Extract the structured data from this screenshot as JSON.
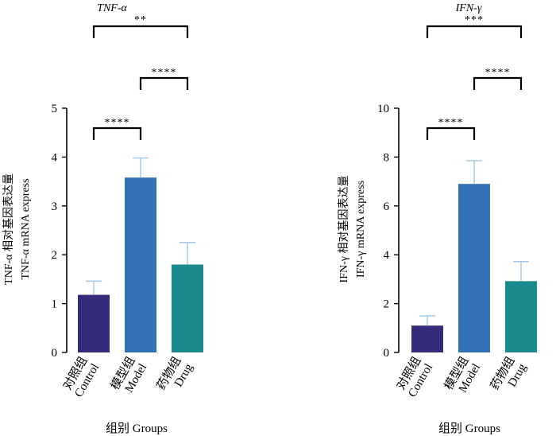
{
  "figure": {
    "xlabel": "组别 Groups",
    "colors": {
      "control": "#342c7a",
      "model": "#3270b8",
      "drug": "#1a8a8e",
      "error_bar": "#a9cbe6",
      "axis": "#000000"
    }
  },
  "chart_data": [
    {
      "type": "bar",
      "title": "TNF-α",
      "ylabel_line1": "TNF-α 相对基因表达量",
      "ylabel_line2": "TNF-α mRNA express",
      "xlabel": "组别 Groups",
      "ylim": [
        0,
        5
      ],
      "yticks": [
        0,
        1,
        2,
        3,
        4,
        5
      ],
      "categories": [
        {
          "cn": "对照组",
          "en": "Control"
        },
        {
          "cn": "模型组",
          "en": "Model"
        },
        {
          "cn": "药物组",
          "en": "Drug"
        }
      ],
      "values": [
        1.18,
        3.58,
        1.8
      ],
      "errors": [
        0.28,
        0.4,
        0.45
      ],
      "significance": [
        {
          "from": 0,
          "to": 1,
          "label": "****"
        },
        {
          "from": 1,
          "to": 2,
          "label": "****"
        },
        {
          "from": 0,
          "to": 2,
          "label": "**"
        }
      ]
    },
    {
      "type": "bar",
      "title": "IFN-γ",
      "ylabel_line1": "IFN-γ 相对基因表达量",
      "ylabel_line2": "IFN-γ mRNA express",
      "xlabel": "组别 Groups",
      "ylim": [
        0,
        10
      ],
      "yticks": [
        0,
        2,
        4,
        6,
        8,
        10
      ],
      "categories": [
        {
          "cn": "对照组",
          "en": "Control"
        },
        {
          "cn": "模型组",
          "en": "Model"
        },
        {
          "cn": "药物组",
          "en": "Drug"
        }
      ],
      "values": [
        1.1,
        6.9,
        2.92
      ],
      "errors": [
        0.4,
        0.95,
        0.8
      ],
      "significance": [
        {
          "from": 0,
          "to": 1,
          "label": "****"
        },
        {
          "from": 1,
          "to": 2,
          "label": "****"
        },
        {
          "from": 0,
          "to": 2,
          "label": "***"
        }
      ]
    }
  ]
}
